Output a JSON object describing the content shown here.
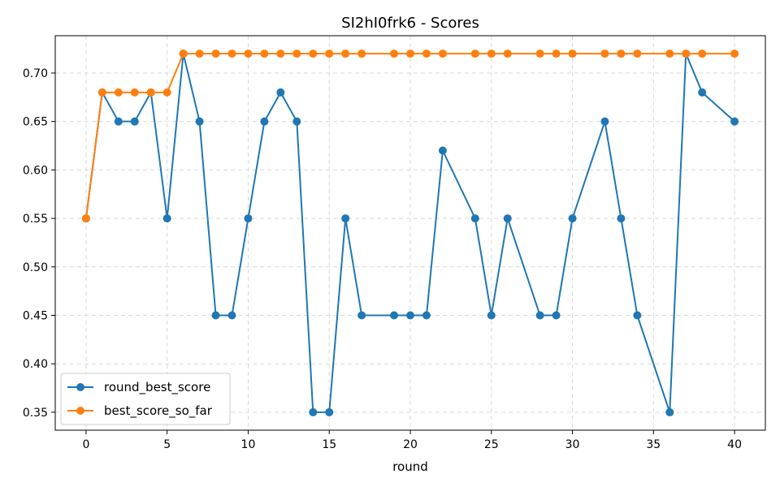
{
  "chart_data": {
    "type": "line",
    "title": "SI2hI0frk6 - Scores",
    "xlabel": "round",
    "ylabel": "",
    "xlim": [
      -1.9,
      41.9
    ],
    "ylim": [
      0.3315,
      0.7385
    ],
    "xticks": [
      0,
      5,
      10,
      15,
      20,
      25,
      30,
      35,
      40
    ],
    "yticks": [
      0.35,
      0.4,
      0.45,
      0.5,
      0.55,
      0.6,
      0.65,
      0.7
    ],
    "grid": true,
    "legend_position": "lower-left",
    "series": [
      {
        "name": "round_best_score",
        "color": "#1f77b4",
        "x": [
          0,
          1,
          2,
          3,
          4,
          5,
          6,
          7,
          8,
          9,
          10,
          11,
          12,
          13,
          14,
          15,
          16,
          17,
          19,
          20,
          21,
          22,
          24,
          25,
          26,
          28,
          29,
          30,
          32,
          33,
          34,
          36,
          37,
          38,
          40
        ],
        "y": [
          0.55,
          0.68,
          0.65,
          0.65,
          0.68,
          0.55,
          0.72,
          0.65,
          0.45,
          0.45,
          0.55,
          0.65,
          0.68,
          0.65,
          0.35,
          0.35,
          0.55,
          0.45,
          0.45,
          0.45,
          0.45,
          0.62,
          0.55,
          0.45,
          0.55,
          0.45,
          0.45,
          0.55,
          0.65,
          0.55,
          0.45,
          0.35,
          0.72,
          0.68,
          0.65
        ]
      },
      {
        "name": "best_score_so_far",
        "color": "#ff7f0e",
        "x": [
          0,
          1,
          2,
          3,
          4,
          5,
          6,
          7,
          8,
          9,
          10,
          11,
          12,
          13,
          14,
          15,
          16,
          17,
          19,
          20,
          21,
          22,
          24,
          25,
          26,
          28,
          29,
          30,
          32,
          33,
          34,
          36,
          37,
          38,
          40
        ],
        "y": [
          0.55,
          0.68,
          0.68,
          0.68,
          0.68,
          0.68,
          0.72,
          0.72,
          0.72,
          0.72,
          0.72,
          0.72,
          0.72,
          0.72,
          0.72,
          0.72,
          0.72,
          0.72,
          0.72,
          0.72,
          0.72,
          0.72,
          0.72,
          0.72,
          0.72,
          0.72,
          0.72,
          0.72,
          0.72,
          0.72,
          0.72,
          0.72,
          0.72,
          0.72,
          0.72
        ]
      }
    ]
  }
}
